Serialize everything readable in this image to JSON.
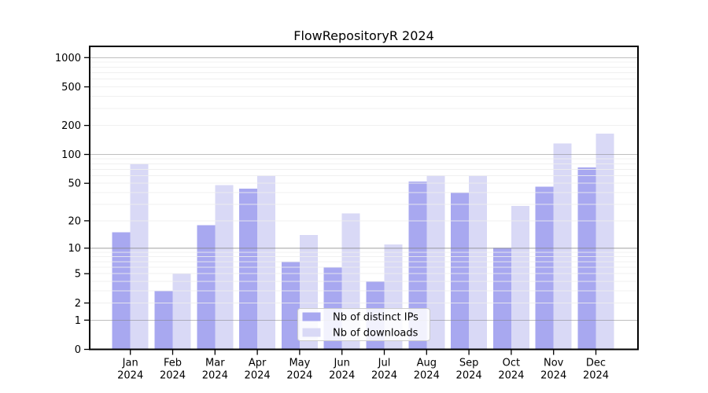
{
  "chart_data": {
    "type": "bar",
    "title": "FlowRepositoryR 2024",
    "categories": [
      "Jan",
      "Feb",
      "Mar",
      "Apr",
      "May",
      "Jun",
      "Jul",
      "Aug",
      "Sep",
      "Oct",
      "Nov",
      "Dec"
    ],
    "category_year": "2024",
    "series": [
      {
        "name": "Nb of distinct IPs",
        "color": "#a8a8f0",
        "values": [
          15,
          3,
          18,
          44,
          7,
          6,
          4,
          52,
          40,
          10,
          46,
          73
        ]
      },
      {
        "name": "Nb of downloads",
        "color": "#d9d9f6",
        "values": [
          80,
          5,
          48,
          60,
          14,
          24,
          11,
          61,
          60,
          29,
          130,
          165
        ]
      }
    ],
    "xlabel": "",
    "ylabel": "",
    "yscale": "log1p",
    "yticks": [
      0,
      1,
      2,
      5,
      10,
      20,
      50,
      100,
      200,
      500,
      1000
    ],
    "ylim": [
      0,
      1300
    ],
    "grid": {
      "major": true,
      "minor": true
    },
    "legend_position": "inside-bottom-center",
    "colors": {
      "background": "#ffffff",
      "axis": "#000000",
      "grid_major": "#c3c3c3",
      "grid_minor": "#ededed",
      "legend_border": "#cccccc",
      "legend_background": "#ffffff",
      "text": "#000000"
    }
  }
}
